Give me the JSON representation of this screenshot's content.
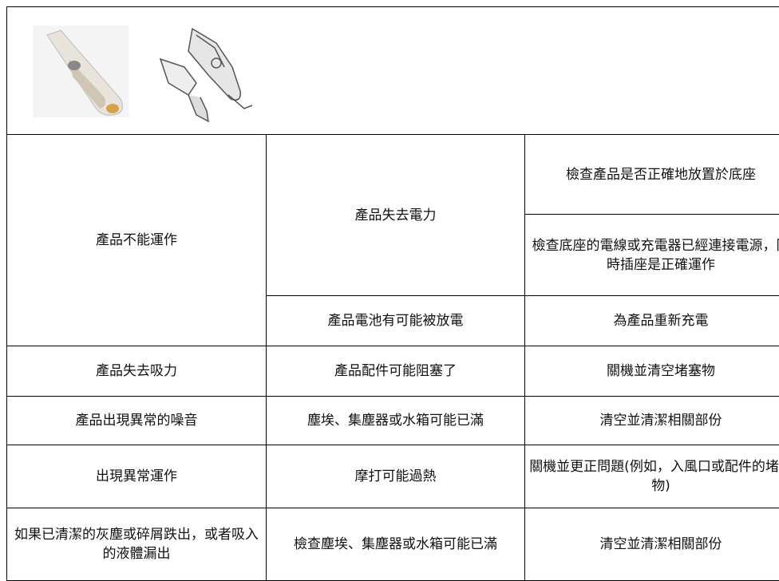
{
  "table": {
    "rows": [
      [
        "產品不能運作",
        "產品失去電力",
        "檢查產品是否正確地放置於底座"
      ],
      [
        "檢查底座的電線或充電器已經連接電源，同時插座是正確運作"
      ],
      [
        "產品電池有可能被放電",
        "為產品重新充電"
      ],
      [
        "產品失去吸力",
        "產品配件可能阻塞了",
        "關機並清空堵塞物"
      ],
      [
        "產品出現異常的噪音",
        "塵埃、集塵器或水箱可能已滿",
        "清空並清潔相關部份"
      ],
      [
        "出現異常運作",
        "摩打可能過熱",
        "關機並更正問題(例如，入風口或配件的堵塞物)"
      ],
      [
        "如果已清潔的灰塵或碎屑跌出，或者吸入的液體漏出",
        "檢查塵埃、集塵器或水箱可能已滿",
        "清空並清潔相關部份"
      ]
    ]
  }
}
